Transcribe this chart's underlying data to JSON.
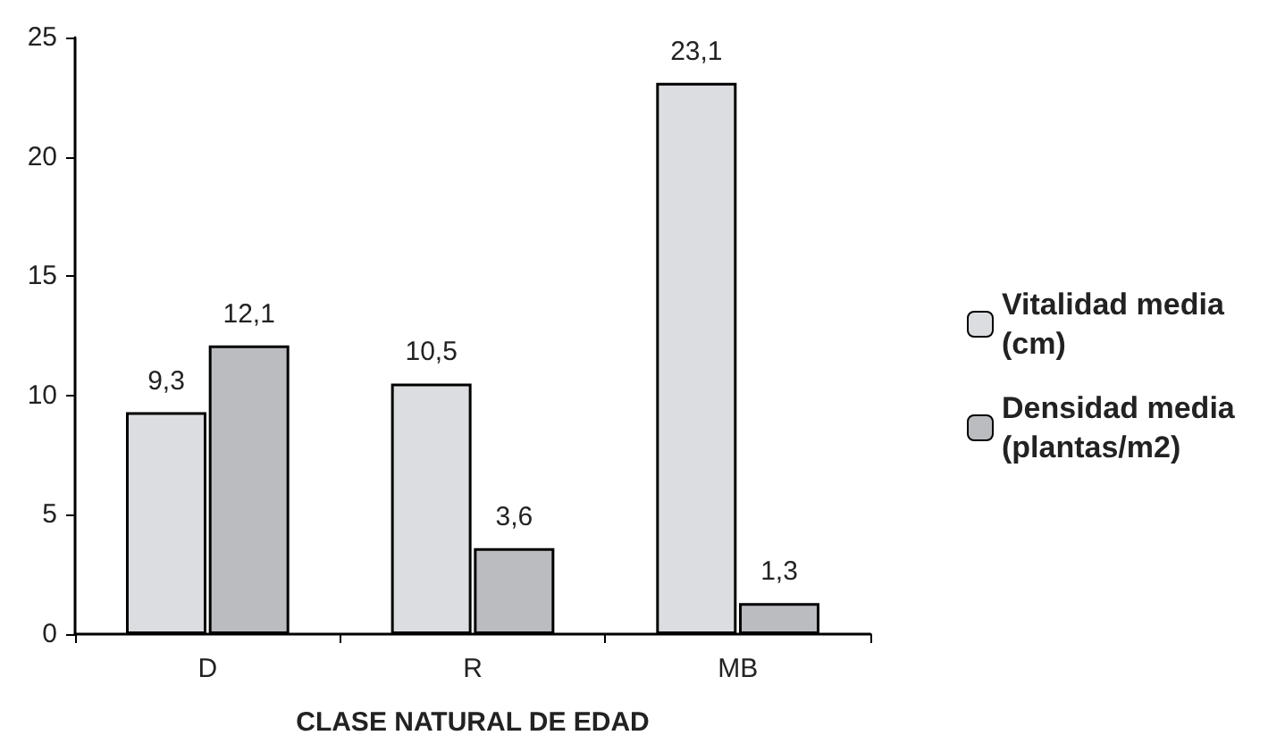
{
  "chart_data": {
    "type": "bar",
    "xlabel": "CLASE NATURAL DE EDAD",
    "categories": [
      "D",
      "R",
      "MB"
    ],
    "series": [
      {
        "name": "Vitalidad media (cm)",
        "color": "#dcdde0",
        "values": [
          9.3,
          10.5,
          23.1
        ],
        "value_labels": [
          "9,3",
          "10,5",
          "23,1"
        ]
      },
      {
        "name": "Densidad media (plantas/m2)",
        "color": "#bbbcc0",
        "values": [
          12.1,
          3.6,
          1.3
        ],
        "value_labels": [
          "12,1",
          "3,6",
          "1,3"
        ]
      }
    ],
    "ylim": [
      0,
      25
    ],
    "yticks": [
      0,
      5,
      10,
      15,
      20,
      25
    ],
    "grid": false,
    "legend": "right"
  }
}
